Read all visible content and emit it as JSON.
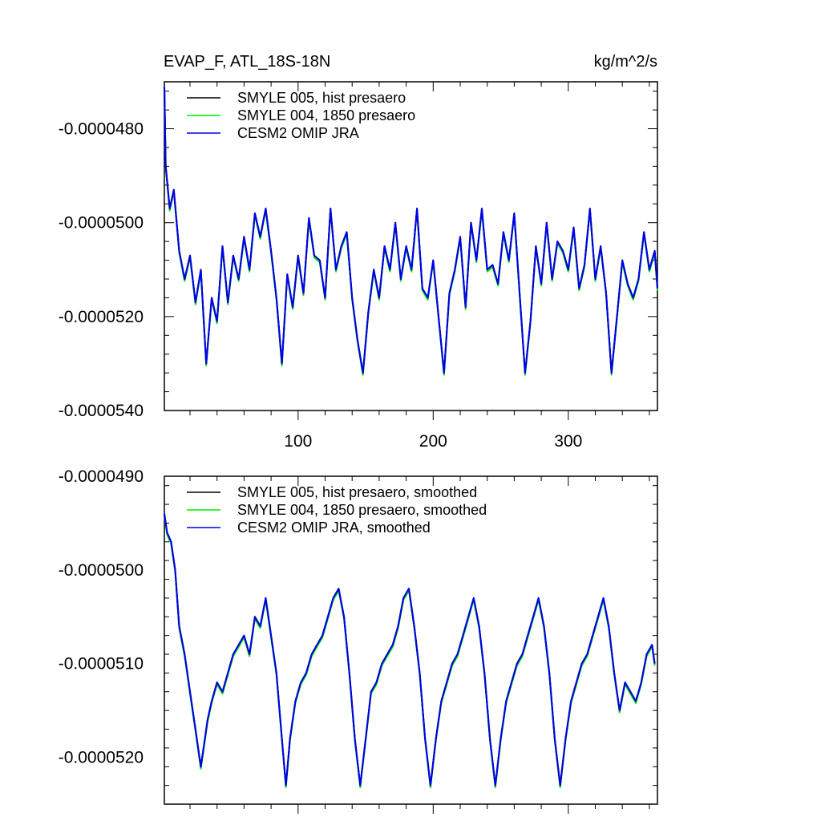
{
  "chart_data": [
    {
      "type": "line",
      "title": "EVAP_F, ATL_18S-18N",
      "units": "kg/m^2/s",
      "xlim": [
        1,
        366
      ],
      "ylim": [
        -5.4e-05,
        -4.7e-05
      ],
      "x_ticks": [
        100,
        200,
        300
      ],
      "x_tick_labels": [
        "100",
        "200",
        "300"
      ],
      "y_ticks": [
        -4.8e-05,
        -5e-05,
        -5.2e-05,
        -5.4e-05
      ],
      "y_tick_labels": [
        "-0.0000480",
        "-0.0000500",
        "-0.0000520",
        "-0.0000540"
      ],
      "legend_position": "top-left",
      "series": [
        {
          "name": "SMYLE 005, hist presaero",
          "color": "#000000"
        },
        {
          "name": "SMYLE 004, 1850 presaero",
          "color": "#00ee00"
        },
        {
          "name": "CESM2 OMIP JRA",
          "color": "#0000ee"
        }
      ],
      "x_day": [
        1,
        2,
        5,
        8,
        12,
        16,
        20,
        24,
        28,
        32,
        36,
        40,
        44,
        48,
        52,
        56,
        60,
        64,
        68,
        72,
        76,
        80,
        84,
        88,
        92,
        96,
        100,
        104,
        108,
        112,
        116,
        120,
        124,
        128,
        132,
        136,
        140,
        144,
        148,
        152,
        156,
        160,
        164,
        168,
        172,
        176,
        180,
        184,
        188,
        192,
        196,
        200,
        204,
        208,
        212,
        216,
        220,
        224,
        228,
        232,
        236,
        240,
        244,
        248,
        252,
        256,
        260,
        264,
        268,
        272,
        276,
        280,
        284,
        288,
        292,
        296,
        300,
        304,
        308,
        312,
        316,
        320,
        324,
        328,
        332,
        336,
        340,
        344,
        348,
        352,
        356,
        360,
        364,
        366
      ],
      "y_value": [
        -4.71e-05,
        -4.88e-05,
        -4.97e-05,
        -4.93e-05,
        -5.06e-05,
        -5.12e-05,
        -5.07e-05,
        -5.17e-05,
        -5.1e-05,
        -5.3e-05,
        -5.16e-05,
        -5.21e-05,
        -5.05e-05,
        -5.17e-05,
        -5.07e-05,
        -5.12e-05,
        -5.03e-05,
        -5.1e-05,
        -4.98e-05,
        -5.03e-05,
        -4.97e-05,
        -5.06e-05,
        -5.16e-05,
        -5.3e-05,
        -5.11e-05,
        -5.18e-05,
        -5.07e-05,
        -5.15e-05,
        -4.99e-05,
        -5.07e-05,
        -5.08e-05,
        -5.16e-05,
        -4.97e-05,
        -5.1e-05,
        -5.05e-05,
        -5.02e-05,
        -5.16e-05,
        -5.25e-05,
        -5.32e-05,
        -5.19e-05,
        -5.1e-05,
        -5.16e-05,
        -5.05e-05,
        -5.1e-05,
        -5e-05,
        -5.12e-05,
        -5.05e-05,
        -5.1e-05,
        -4.97e-05,
        -5.14e-05,
        -5.16e-05,
        -5.08e-05,
        -5.2e-05,
        -5.32e-05,
        -5.15e-05,
        -5.1e-05,
        -5.03e-05,
        -5.18e-05,
        -5e-05,
        -5.08e-05,
        -4.97e-05,
        -5.1e-05,
        -5.09e-05,
        -5.13e-05,
        -5.02e-05,
        -5.08e-05,
        -4.98e-05,
        -5.15e-05,
        -5.32e-05,
        -5.21e-05,
        -5.05e-05,
        -5.13e-05,
        -5e-05,
        -5.12e-05,
        -5.04e-05,
        -5.06e-05,
        -5.1e-05,
        -5.01e-05,
        -5.14e-05,
        -5.09e-05,
        -4.97e-05,
        -5.12e-05,
        -5.05e-05,
        -5.15e-05,
        -5.32e-05,
        -5.2e-05,
        -5.08e-05,
        -5.13e-05,
        -5.16e-05,
        -5.12e-05,
        -5.02e-05,
        -5.1e-05,
        -5.06e-05,
        -5.14e-05
      ]
    },
    {
      "type": "line",
      "xlim": [
        1,
        366
      ],
      "ylim": [
        -5.25e-05,
        -4.9e-05
      ],
      "x_ticks": [
        100,
        200,
        300
      ],
      "y_ticks": [
        -4.9e-05,
        -5e-05,
        -5.1e-05,
        -5.2e-05
      ],
      "y_tick_labels": [
        "-0.0000490",
        "-0.0000500",
        "-0.0000510",
        "-0.0000520"
      ],
      "legend_position": "top-left",
      "series": [
        {
          "name": "SMYLE 005, hist presaero, smoothed",
          "color": "#000000"
        },
        {
          "name": "SMYLE 004, 1850 presaero, smoothed",
          "color": "#00ee00"
        },
        {
          "name": "CESM2 OMIP JRA, smoothed",
          "color": "#0000ee"
        }
      ],
      "x_day": [
        1,
        3,
        6,
        9,
        12,
        16,
        20,
        24,
        28,
        30,
        33,
        36,
        40,
        44,
        48,
        52,
        56,
        60,
        64,
        68,
        72,
        76,
        80,
        84,
        88,
        91,
        94,
        98,
        102,
        106,
        110,
        114,
        118,
        122,
        126,
        130,
        134,
        138,
        142,
        146,
        150,
        154,
        158,
        162,
        166,
        170,
        174,
        178,
        182,
        186,
        190,
        194,
        198,
        202,
        206,
        210,
        214,
        218,
        222,
        226,
        230,
        234,
        238,
        242,
        246,
        250,
        254,
        258,
        262,
        266,
        270,
        274,
        278,
        282,
        286,
        290,
        294,
        298,
        302,
        306,
        310,
        314,
        318,
        322,
        326,
        330,
        334,
        338,
        342,
        346,
        350,
        354,
        358,
        362,
        364
      ],
      "y_value": [
        -4.94e-05,
        -4.96e-05,
        -4.97e-05,
        -5e-05,
        -5.06e-05,
        -5.09e-05,
        -5.13e-05,
        -5.17e-05,
        -5.21e-05,
        -5.19e-05,
        -5.16e-05,
        -5.14e-05,
        -5.12e-05,
        -5.13e-05,
        -5.11e-05,
        -5.09e-05,
        -5.08e-05,
        -5.07e-05,
        -5.09e-05,
        -5.05e-05,
        -5.06e-05,
        -5.03e-05,
        -5.07e-05,
        -5.11e-05,
        -5.18e-05,
        -5.23e-05,
        -5.18e-05,
        -5.14e-05,
        -5.12e-05,
        -5.11e-05,
        -5.09e-05,
        -5.08e-05,
        -5.07e-05,
        -5.05e-05,
        -5.03e-05,
        -5.02e-05,
        -5.05e-05,
        -5.11e-05,
        -5.18e-05,
        -5.23e-05,
        -5.18e-05,
        -5.13e-05,
        -5.12e-05,
        -5.1e-05,
        -5.09e-05,
        -5.08e-05,
        -5.06e-05,
        -5.03e-05,
        -5.02e-05,
        -5.06e-05,
        -5.11e-05,
        -5.18e-05,
        -5.23e-05,
        -5.18e-05,
        -5.14e-05,
        -5.12e-05,
        -5.1e-05,
        -5.09e-05,
        -5.07e-05,
        -5.05e-05,
        -5.03e-05,
        -5.06e-05,
        -5.11e-05,
        -5.18e-05,
        -5.23e-05,
        -5.18e-05,
        -5.14e-05,
        -5.12e-05,
        -5.1e-05,
        -5.09e-05,
        -5.07e-05,
        -5.05e-05,
        -5.03e-05,
        -5.06e-05,
        -5.11e-05,
        -5.18e-05,
        -5.23e-05,
        -5.18e-05,
        -5.14e-05,
        -5.12e-05,
        -5.1e-05,
        -5.09e-05,
        -5.07e-05,
        -5.05e-05,
        -5.03e-05,
        -5.06e-05,
        -5.11e-05,
        -5.15e-05,
        -5.12e-05,
        -5.13e-05,
        -5.14e-05,
        -5.12e-05,
        -5.09e-05,
        -5.08e-05,
        -5.1e-05
      ]
    }
  ]
}
